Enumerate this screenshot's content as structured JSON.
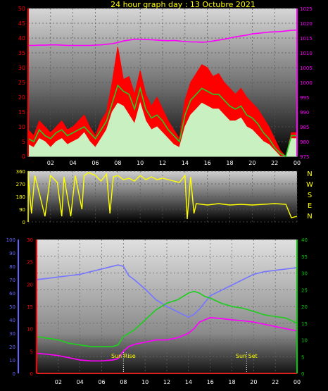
{
  "title": "24 hour graph day : 13 Octubre 2021",
  "colors": {
    "background": "#000000",
    "title": "#ffff00",
    "wind_gust": "#ff0000",
    "wind_speed": "#c8f0c0",
    "wind_avg": "#22cc22",
    "pressure": "#ff00ff",
    "direction": "#ffff00",
    "humidity": "#7777ff",
    "temperature": "#22cc22",
    "dewpoint": "#ff00ff",
    "rain": "#ff2222",
    "axis_left": "#ff0000",
    "axis_right": "#ff00ff",
    "axis_blue": "#6666ff",
    "axis_green": "#00cc00"
  },
  "x_ticks": [
    "02",
    "04",
    "06",
    "08",
    "10",
    "12",
    "14",
    "16",
    "18",
    "20",
    "22",
    "00"
  ],
  "compass": [
    "N",
    "W",
    "S",
    "E",
    "N"
  ],
  "sun": {
    "rise_label": "Sun Rise",
    "rise_hour": 8.0,
    "set_label": "Sun Set",
    "set_hour": 19.35
  },
  "chart_data": [
    {
      "type": "line",
      "panel": "wind_pressure",
      "x_hours": [
        0,
        0.5,
        1,
        1.5,
        2,
        2.5,
        3,
        3.5,
        4,
        4.5,
        5,
        5.5,
        6,
        6.5,
        7,
        7.5,
        8,
        8.5,
        9,
        9.5,
        10,
        10.5,
        11,
        11.5,
        12,
        12.5,
        13,
        13.5,
        14,
        14.5,
        15,
        15.5,
        16,
        16.5,
        17,
        17.5,
        18,
        18.5,
        19,
        19.5,
        20,
        20.5,
        21,
        21.5,
        22,
        22.5,
        23,
        23.5,
        24
      ],
      "xlim": [
        0,
        24
      ],
      "y_left_ticks": [
        0,
        5,
        10,
        15,
        20,
        25,
        30,
        35,
        40,
        45,
        50
      ],
      "ylim_left": [
        0,
        50
      ],
      "y_right_ticks": [
        975,
        980,
        985,
        990,
        995,
        1000,
        1005,
        1010,
        1015,
        1020,
        1025
      ],
      "ylim_right": [
        975,
        1025
      ],
      "series": [
        {
          "key": "gust",
          "axis": "left",
          "values": [
            9,
            7,
            12,
            10,
            8,
            10,
            12,
            9,
            10,
            12,
            14,
            10,
            7,
            12,
            15,
            25,
            37,
            26,
            27,
            21,
            29,
            21,
            17,
            20,
            16,
            12,
            9,
            6,
            19,
            25,
            28,
            31,
            30,
            27,
            28,
            25,
            23,
            21,
            23,
            20,
            18,
            16,
            13,
            10,
            6,
            2,
            0,
            8,
            8
          ]
        },
        {
          "key": "speed",
          "axis": "left",
          "values": [
            4,
            3,
            6,
            5,
            3,
            5,
            6,
            4,
            5,
            6,
            8,
            5,
            3,
            6,
            9,
            15,
            18,
            17,
            14,
            11,
            18,
            12,
            9,
            10,
            8,
            6,
            4,
            3,
            10,
            14,
            16,
            18,
            17,
            16,
            16,
            14,
            12,
            12,
            13,
            10,
            9,
            7,
            5,
            4,
            2,
            0,
            0,
            6,
            6
          ]
        },
        {
          "key": "avg",
          "axis": "left",
          "values": [
            6,
            5,
            9,
            7,
            6,
            8,
            9,
            7,
            8,
            9,
            10,
            8,
            6,
            9,
            12,
            18,
            24,
            22,
            21,
            16,
            23,
            16,
            13,
            14,
            12,
            9,
            7,
            5,
            14,
            19,
            21,
            23,
            22,
            21,
            21,
            19,
            17,
            16,
            17,
            14,
            13,
            11,
            8,
            6,
            3,
            1,
            0,
            7,
            7
          ]
        },
        {
          "key": "pressure",
          "axis": "right",
          "values": [
            1012.5,
            1012.5,
            1012.6,
            1012.6,
            1012.7,
            1012.7,
            1012.6,
            1012.5,
            1012.5,
            1012.5,
            1012.5,
            1012.5,
            1012.6,
            1012.7,
            1012.9,
            1013.1,
            1013.5,
            1014.0,
            1014.3,
            1014.6,
            1014.6,
            1014.5,
            1014.4,
            1014.3,
            1014.2,
            1014.1,
            1014.2,
            1014.0,
            1013.8,
            1013.7,
            1013.7,
            1013.6,
            1013.7,
            1014.0,
            1014.3,
            1014.6,
            1015.0,
            1015.4,
            1015.7,
            1016.0,
            1016.4,
            1016.6,
            1016.8,
            1017.0,
            1017.1,
            1017.2,
            1017.4,
            1017.6,
            1017.7
          ]
        }
      ]
    },
    {
      "type": "line",
      "panel": "wind_direction",
      "x_hours": [
        0,
        0.3,
        0.6,
        1.5,
        2.0,
        2.6,
        3.0,
        3.2,
        3.8,
        4.2,
        4.8,
        5.0,
        5.4,
        6.0,
        6.5,
        7.0,
        7.3,
        7.6,
        8.0,
        8.5,
        9.0,
        9.5,
        10.0,
        10.5,
        11.0,
        11.5,
        12.0,
        12.5,
        13.0,
        13.5,
        14.0,
        14.2,
        14.5,
        14.8,
        15.0,
        16.0,
        17.0,
        18.0,
        19.0,
        20.0,
        21.0,
        22.0,
        23.0,
        23.5,
        24.0
      ],
      "xlim": [
        0,
        24
      ],
      "y_ticks": [
        0,
        90,
        180,
        270,
        360
      ],
      "ylim": [
        0,
        360
      ],
      "values": [
        320,
        60,
        330,
        40,
        330,
        280,
        40,
        320,
        40,
        330,
        90,
        330,
        350,
        330,
        290,
        340,
        60,
        320,
        330,
        300,
        310,
        290,
        330,
        300,
        320,
        300,
        310,
        300,
        290,
        280,
        330,
        20,
        320,
        60,
        130,
        120,
        130,
        120,
        125,
        120,
        125,
        130,
        125,
        30,
        40
      ]
    },
    {
      "type": "line",
      "panel": "temperature_humidity",
      "x_hours": [
        0,
        1,
        2,
        3,
        4,
        5,
        6,
        7,
        7.5,
        8,
        8.5,
        9,
        10,
        11,
        12,
        13,
        14,
        14.5,
        15,
        15.5,
        16,
        17,
        18,
        19,
        20,
        21,
        22,
        23,
        24
      ],
      "xlim": [
        0,
        24
      ],
      "y_blue_ticks": [
        0,
        10,
        20,
        30,
        40,
        50,
        60,
        70,
        80,
        90,
        100
      ],
      "ylim_blue": [
        0,
        100
      ],
      "y_red_ticks": [
        0,
        5,
        10,
        15,
        20,
        25,
        30
      ],
      "ylim_red": [
        0,
        30
      ],
      "y_green_ticks": [
        0,
        5,
        10,
        15,
        20,
        25,
        30,
        35,
        40
      ],
      "ylim_green": [
        0,
        40
      ],
      "series": [
        {
          "key": "humidity",
          "axis": "blue",
          "values": [
            70,
            71,
            72,
            73,
            74,
            76,
            78,
            80,
            81,
            80,
            73,
            70,
            63,
            55,
            50,
            46,
            42,
            44,
            48,
            53,
            58,
            62,
            66,
            70,
            74,
            76,
            77,
            78,
            79
          ]
        },
        {
          "key": "temperature",
          "axis": "green",
          "values": [
            11,
            10.5,
            10,
            9,
            8.5,
            8,
            8,
            8,
            8.5,
            11,
            12,
            13,
            16,
            19,
            21,
            22,
            24,
            24.5,
            24,
            23,
            22.5,
            21,
            20,
            19.5,
            18.5,
            17.5,
            17,
            16.5,
            15
          ]
        },
        {
          "key": "dewpoint",
          "axis": "red",
          "values": [
            4.5,
            4.3,
            4,
            3.5,
            3,
            2.8,
            2.8,
            3,
            3.3,
            5,
            6,
            6.5,
            7,
            7.5,
            7.5,
            8,
            9,
            10,
            11.5,
            12,
            12.5,
            12.3,
            12,
            11.8,
            11.5,
            11,
            10.5,
            10,
            9.5
          ]
        },
        {
          "key": "rain",
          "axis": "red",
          "values": [
            0,
            0,
            0,
            0,
            0,
            0,
            0,
            0,
            0,
            0,
            0,
            0,
            0,
            0,
            0,
            0,
            0,
            0,
            0,
            0,
            0,
            0,
            0,
            0,
            0,
            0,
            0,
            0,
            0
          ]
        }
      ]
    }
  ]
}
